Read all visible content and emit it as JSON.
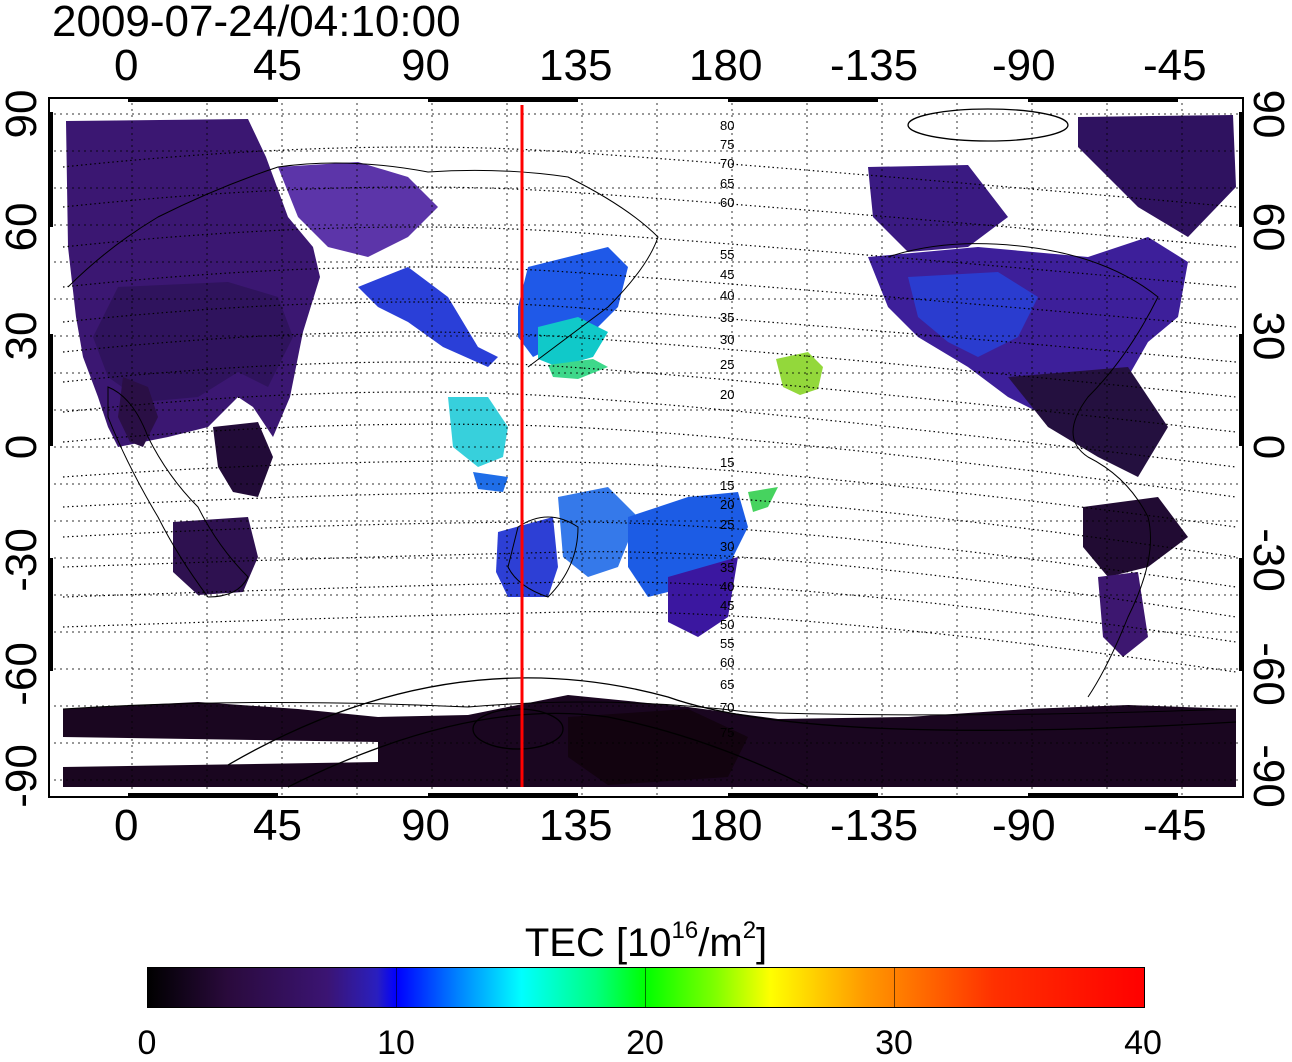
{
  "title": "2009-07-24/04:10:00",
  "lon_ticks": [
    "0",
    "45",
    "90",
    "135",
    "180",
    "-135",
    "-90",
    "-45"
  ],
  "lat_ticks": [
    "90",
    "60",
    "30",
    "0",
    "-30",
    "-60",
    "-90"
  ],
  "dip_labels": [
    "80",
    "75",
    "70",
    "65",
    "60",
    "55",
    "45",
    "40",
    "35",
    "30",
    "25",
    "20",
    "15",
    "15",
    "20",
    "25",
    "30",
    "35",
    "40",
    "45",
    "50",
    "55",
    "60",
    "65",
    "70",
    "75"
  ],
  "meridian_marker_lon": "120",
  "colorbar": {
    "label_main": "TEC  [10",
    "label_exp": "16",
    "label_mid": "/m",
    "label_exp2": "2",
    "label_end": "]",
    "ticks": [
      "0",
      "10",
      "20",
      "30",
      "40"
    ],
    "range": [
      0,
      40
    ]
  },
  "colors": {
    "meridian_marker": "#ff0000"
  }
}
